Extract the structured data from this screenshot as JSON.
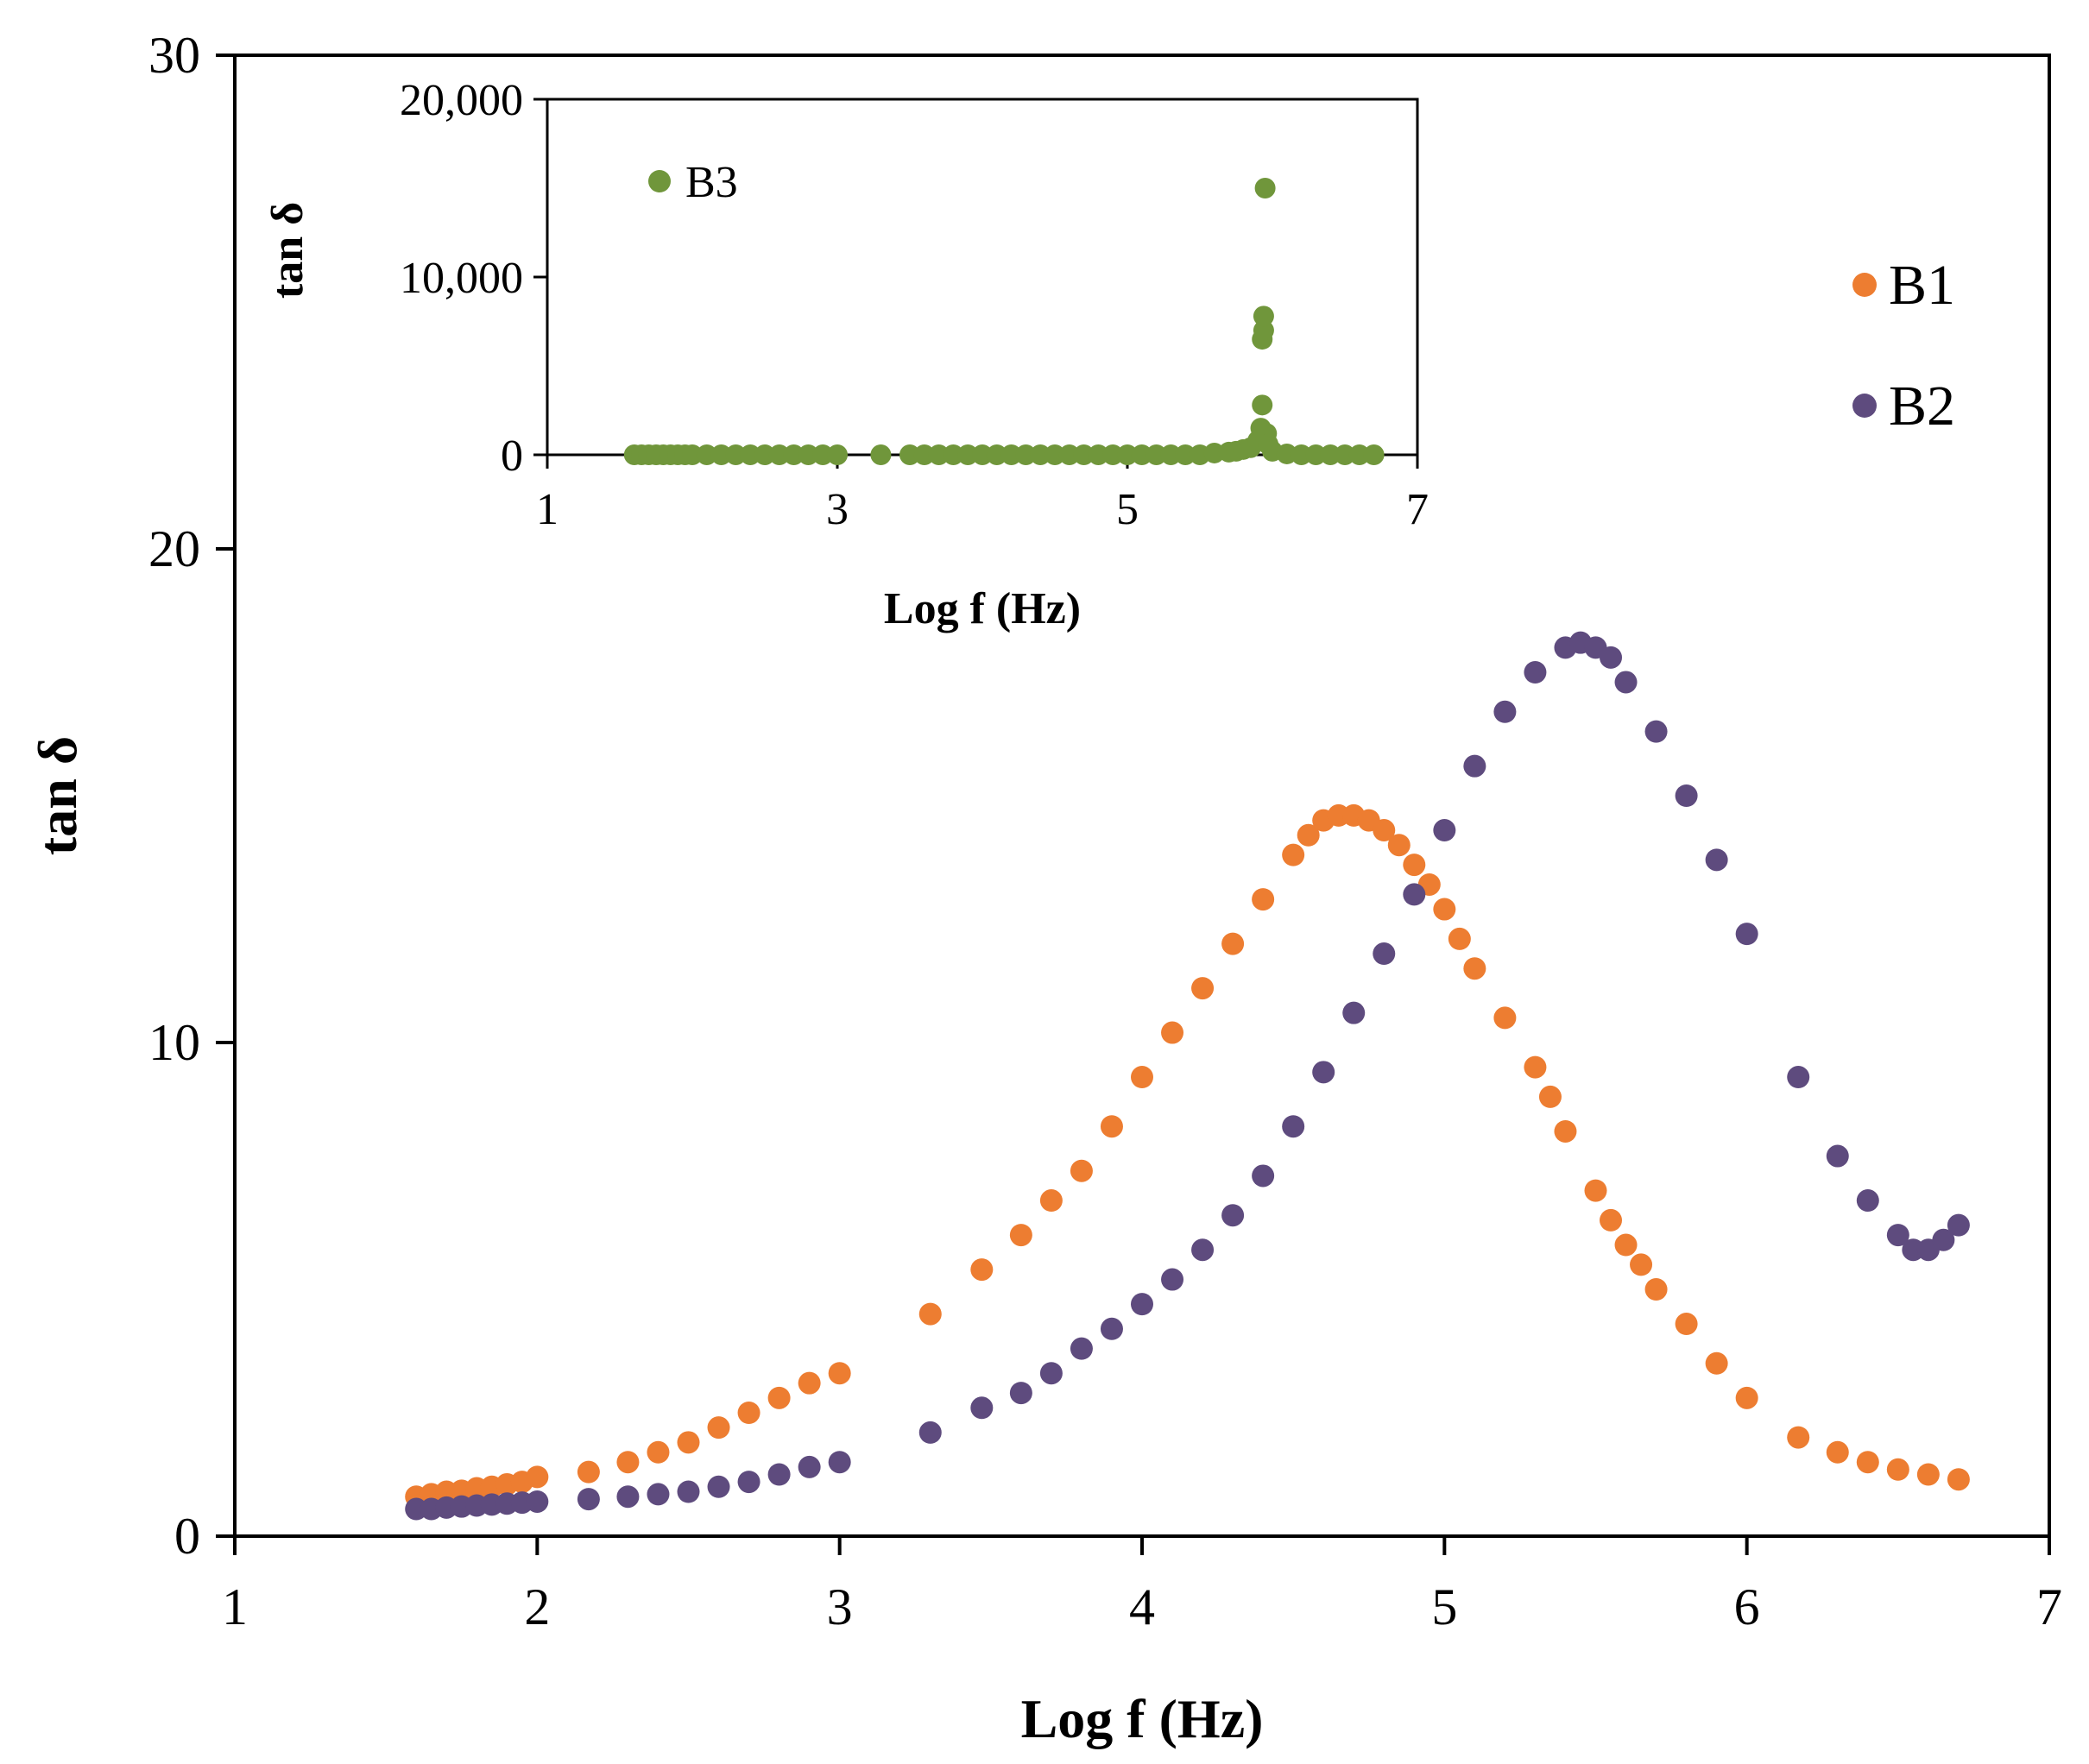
{
  "chart_data": [
    {
      "type": "scatter",
      "role": "main",
      "xlabel": "Log f (Hz)",
      "ylabel": "tan δ",
      "xlim": [
        1,
        7
      ],
      "ylim": [
        0,
        30
      ],
      "xticks": [
        "1",
        "2",
        "3",
        "4",
        "5",
        "6",
        "7"
      ],
      "yticks": [
        "0",
        "10",
        "20",
        "30"
      ],
      "legend_position": "right",
      "series": [
        {
          "name": "B1",
          "color": "#ed7d31",
          "x": [
            1.6,
            1.65,
            1.7,
            1.75,
            1.8,
            1.85,
            1.9,
            1.95,
            2.0,
            2.17,
            2.3,
            2.4,
            2.5,
            2.6,
            2.7,
            2.8,
            2.9,
            3.0,
            3.3,
            3.47,
            3.6,
            3.7,
            3.8,
            3.9,
            4.0,
            4.1,
            4.2,
            4.3,
            4.4,
            4.5,
            4.55,
            4.6,
            4.65,
            4.7,
            4.75,
            4.8,
            4.85,
            4.9,
            4.95,
            5.0,
            5.05,
            5.1,
            5.2,
            5.3,
            5.35,
            5.4,
            5.5,
            5.55,
            5.6,
            5.65,
            5.7,
            5.8,
            5.9,
            6.0,
            6.17,
            6.3,
            6.4,
            6.5,
            6.6,
            6.7
          ],
          "y": [
            0.8,
            0.85,
            0.9,
            0.92,
            0.97,
            1.0,
            1.05,
            1.1,
            1.2,
            1.3,
            1.5,
            1.7,
            1.9,
            2.2,
            2.5,
            2.8,
            3.1,
            3.3,
            4.5,
            5.4,
            6.1,
            6.8,
            7.4,
            8.3,
            9.3,
            10.2,
            11.1,
            12.0,
            12.9,
            13.8,
            14.2,
            14.5,
            14.6,
            14.6,
            14.5,
            14.3,
            14.0,
            13.6,
            13.2,
            12.7,
            12.1,
            11.5,
            10.5,
            9.5,
            8.9,
            8.2,
            7.0,
            6.4,
            5.9,
            5.5,
            5.0,
            4.3,
            3.5,
            2.8,
            2.0,
            1.7,
            1.5,
            1.35,
            1.25,
            1.15
          ]
        },
        {
          "name": "B2",
          "color": "#5e4b7e",
          "x": [
            1.6,
            1.65,
            1.7,
            1.75,
            1.8,
            1.85,
            1.9,
            1.95,
            2.0,
            2.17,
            2.3,
            2.4,
            2.5,
            2.6,
            2.7,
            2.8,
            2.9,
            3.0,
            3.3,
            3.47,
            3.6,
            3.7,
            3.8,
            3.9,
            4.0,
            4.1,
            4.2,
            4.3,
            4.4,
            4.5,
            4.6,
            4.7,
            4.8,
            4.9,
            5.0,
            5.1,
            5.2,
            5.3,
            5.4,
            5.45,
            5.5,
            5.55,
            5.6,
            5.7,
            5.8,
            5.9,
            6.0,
            6.17,
            6.3,
            6.4,
            6.5,
            6.55,
            6.6,
            6.65,
            6.7
          ],
          "y": [
            0.55,
            0.55,
            0.58,
            0.6,
            0.62,
            0.64,
            0.66,
            0.68,
            0.7,
            0.75,
            0.8,
            0.85,
            0.9,
            1.0,
            1.1,
            1.25,
            1.4,
            1.5,
            2.1,
            2.6,
            2.9,
            3.3,
            3.8,
            4.2,
            4.7,
            5.2,
            5.8,
            6.5,
            7.3,
            8.3,
            9.4,
            10.6,
            11.8,
            13.0,
            14.3,
            15.6,
            16.7,
            17.5,
            18.0,
            18.1,
            18.0,
            17.8,
            17.3,
            16.3,
            15.0,
            13.7,
            12.2,
            9.3,
            7.7,
            6.8,
            6.1,
            5.8,
            5.8,
            6.0,
            6.3
          ]
        }
      ]
    },
    {
      "type": "scatter",
      "role": "inset",
      "xlabel": "Log f (Hz)",
      "ylabel": "tan δ",
      "xlim": [
        1,
        7
      ],
      "ylim": [
        0,
        20000
      ],
      "xticks": [
        "1",
        "3",
        "5",
        "7"
      ],
      "yticks": [
        "0",
        "10,000",
        "20,000"
      ],
      "legend_position": "top-left",
      "series": [
        {
          "name": "B3",
          "color": "#70963b",
          "x": [
            1.6,
            1.65,
            1.7,
            1.75,
            1.8,
            1.85,
            1.9,
            1.95,
            2.0,
            2.1,
            2.2,
            2.3,
            2.4,
            2.5,
            2.6,
            2.7,
            2.8,
            2.9,
            3.0,
            3.3,
            3.5,
            3.6,
            3.7,
            3.8,
            3.9,
            4.0,
            4.1,
            4.2,
            4.3,
            4.4,
            4.5,
            4.6,
            4.7,
            4.8,
            4.9,
            5.0,
            5.1,
            5.2,
            5.3,
            5.4,
            5.5,
            5.6,
            5.7,
            5.75,
            5.8,
            5.85,
            5.9,
            5.92,
            5.93,
            5.93,
            5.94,
            5.94,
            5.95,
            5.96,
            5.97,
            6.0,
            6.1,
            6.2,
            6.3,
            6.4,
            6.5,
            6.6,
            6.7
          ],
          "y": [
            0,
            0,
            0,
            0,
            0,
            0,
            0,
            0,
            0,
            0,
            0,
            0,
            0,
            0,
            0,
            0,
            0,
            0,
            0,
            0,
            0,
            0,
            0,
            0,
            0,
            0,
            0,
            0,
            0,
            0,
            0,
            0,
            0,
            0,
            0,
            0,
            0,
            0,
            0,
            0,
            0,
            100,
            150,
            200,
            300,
            400,
            800,
            1500,
            2800,
            6500,
            7000,
            7800,
            15000,
            1200,
            600,
            200,
            50,
            0,
            0,
            0,
            0,
            0,
            0
          ]
        }
      ]
    }
  ]
}
